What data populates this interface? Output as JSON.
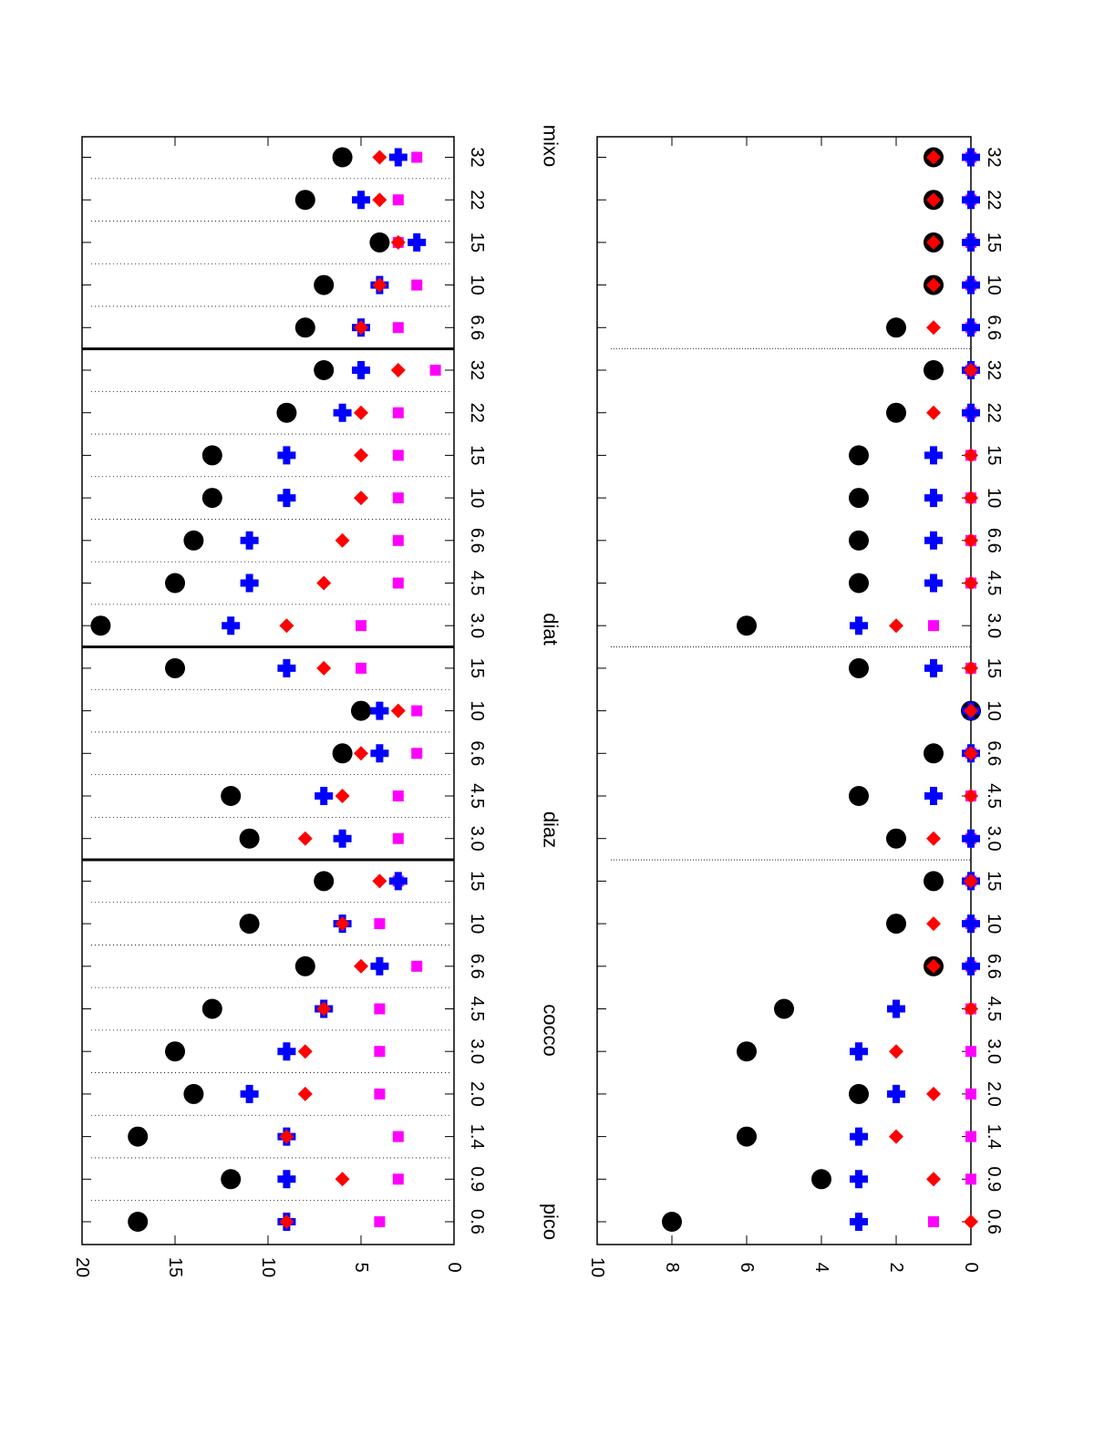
{
  "chart_data": [
    {
      "type": "scatter",
      "orientation": "rotated-90-clockwise",
      "title": "",
      "ylim": [
        0,
        20
      ],
      "yticks": [
        0,
        5,
        10,
        15,
        20
      ],
      "group_separators": "solid",
      "colors": {
        "black": "#000000",
        "blue": "#0000ff",
        "red": "#ff0000",
        "magenta": "#ff00ff"
      },
      "categories": [
        "0.6",
        "0.9",
        "1.4",
        "2.0",
        "3.0",
        "4.5",
        "6.6",
        "10",
        "15",
        "3.0",
        "4.5",
        "6.6",
        "10",
        "15",
        "3.0",
        "4.5",
        "6.6",
        "10",
        "15",
        "22",
        "32",
        "6.6",
        "10",
        "15",
        "22",
        "32"
      ],
      "series": [
        {
          "name": "black-circle",
          "values": [
            17,
            12,
            17,
            14,
            15,
            13,
            8,
            11,
            7,
            11,
            12,
            6,
            5,
            15,
            19,
            15,
            14,
            13,
            13,
            9,
            7,
            8,
            7,
            4,
            8,
            6
          ]
        },
        {
          "name": "blue-cross",
          "values": [
            9,
            9,
            9,
            11,
            9,
            7,
            4,
            6,
            3,
            6,
            7,
            4,
            4,
            9,
            12,
            11,
            11,
            9,
            9,
            6,
            5,
            5,
            4,
            2,
            5,
            3
          ]
        },
        {
          "name": "red-diamond",
          "values": [
            9,
            6,
            9,
            8,
            8,
            7,
            5,
            6,
            4,
            8,
            6,
            5,
            3,
            7,
            9,
            7,
            6,
            5,
            5,
            5,
            3,
            5,
            4,
            3,
            4,
            4
          ]
        },
        {
          "name": "magenta-square",
          "values": [
            4,
            3,
            3,
            4,
            4,
            4,
            2,
            4,
            3,
            3,
            3,
            2,
            2,
            5,
            5,
            3,
            3,
            3,
            3,
            3,
            1,
            3,
            2,
            3,
            3,
            2
          ]
        }
      ]
    },
    {
      "type": "scatter",
      "orientation": "rotated-90-clockwise",
      "title": "",
      "ylim": [
        0,
        10
      ],
      "yticks": [
        0,
        2,
        4,
        6,
        8,
        10
      ],
      "group_separators": "dotted",
      "group_labels": [
        "pico",
        "cocco",
        "diaz",
        "diat",
        "mixo"
      ],
      "colors": {
        "black": "#000000",
        "blue": "#0000ff",
        "red": "#ff0000",
        "magenta": "#ff00ff"
      },
      "categories": [
        "0.6",
        "0.9",
        "1.4",
        "2.0",
        "3.0",
        "4.5",
        "6.6",
        "10",
        "15",
        "3.0",
        "4.5",
        "6.6",
        "10",
        "15",
        "3.0",
        "4.5",
        "6.6",
        "10",
        "15",
        "22",
        "32",
        "6.6",
        "10",
        "15",
        "22",
        "32"
      ],
      "series": [
        {
          "name": "black-circle",
          "values": [
            8,
            4,
            6,
            3,
            6,
            5,
            1,
            2,
            1,
            2,
            3,
            1,
            0,
            3,
            6,
            3,
            3,
            3,
            3,
            2,
            1,
            2,
            1,
            1,
            1,
            1
          ]
        },
        {
          "name": "blue-cross",
          "values": [
            3,
            3,
            3,
            2,
            3,
            2,
            0,
            0,
            0,
            0,
            1,
            0,
            0,
            1,
            3,
            1,
            1,
            1,
            1,
            0,
            0,
            0,
            0,
            0,
            0,
            0
          ]
        },
        {
          "name": "red-diamond",
          "values": [
            0,
            1,
            2,
            1,
            2,
            0,
            1,
            1,
            0,
            1,
            0,
            0,
            0,
            0,
            2,
            0,
            0,
            0,
            0,
            1,
            0,
            1,
            1,
            1,
            1,
            1
          ]
        },
        {
          "name": "magenta-square",
          "values": [
            1,
            0,
            0,
            0,
            0,
            0,
            0,
            0,
            0,
            0,
            0,
            0,
            0,
            0,
            1,
            0,
            0,
            0,
            0,
            0,
            0,
            0,
            0,
            0,
            0,
            0
          ]
        }
      ]
    }
  ]
}
